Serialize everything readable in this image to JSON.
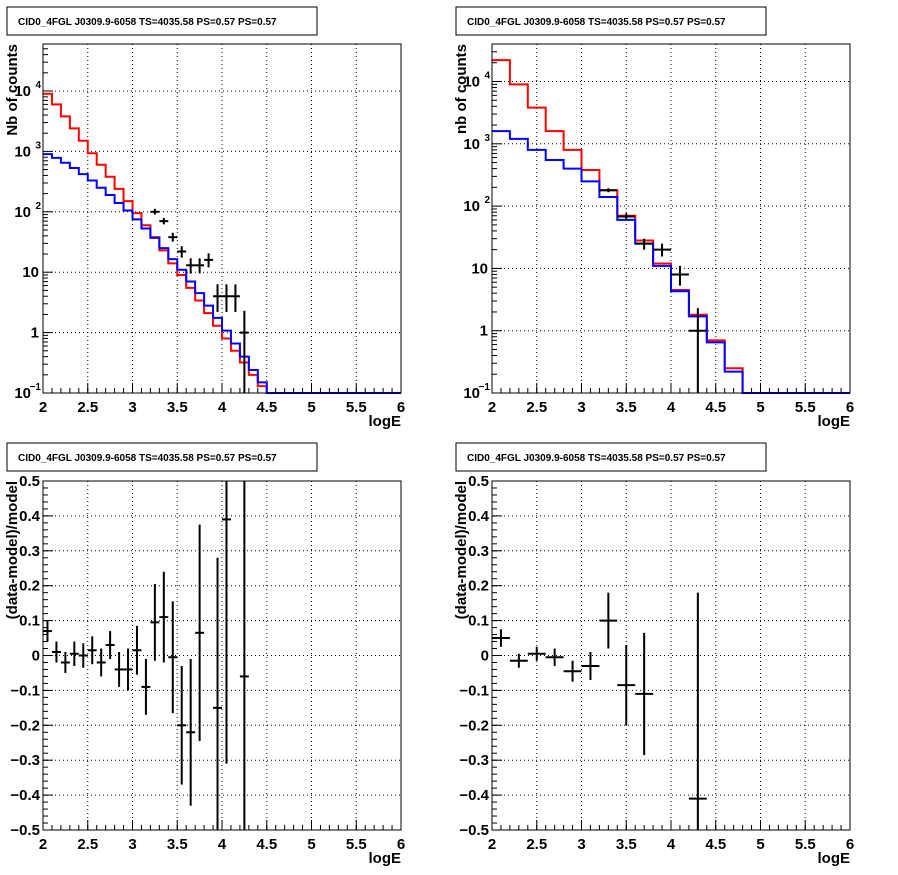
{
  "colors": {
    "total_model": "#ff0000",
    "source_model": "#0000ff",
    "data": "#000000",
    "grid": "#000000"
  },
  "chart_data": [
    {
      "type": "line",
      "title": "CID0_4FGL J0309.9-6058 TS=4035.58 PS=0.57 PS=0.57",
      "xlabel": "logE",
      "ylabel": "Nb of counts",
      "xlim": [
        2,
        6
      ],
      "ylim": [
        0.1,
        60000
      ],
      "yscale": "log",
      "grid": true,
      "x_ticks": [
        "2",
        "2.5",
        "3",
        "3.5",
        "4",
        "4.5",
        "5",
        "5.5",
        "6"
      ],
      "y_ticks": [
        {
          "value": 0.1,
          "label": "10",
          "exp": "−1"
        },
        {
          "value": 1,
          "label": "1",
          "exp": ""
        },
        {
          "value": 10,
          "label": "10",
          "exp": ""
        },
        {
          "value": 100,
          "label": "10",
          "exp": "2"
        },
        {
          "value": 1000,
          "label": "10",
          "exp": "3"
        },
        {
          "value": 10000,
          "label": "10",
          "exp": "4"
        }
      ],
      "bin_edges": [
        2.0,
        2.1,
        2.2,
        2.3,
        2.4,
        2.5,
        2.6,
        2.7,
        2.8,
        2.9,
        3.0,
        3.1,
        3.2,
        3.3,
        3.4,
        3.5,
        3.6,
        3.7,
        3.8,
        3.9,
        4.0,
        4.1,
        4.2,
        4.3,
        4.4,
        4.5,
        4.6,
        4.7,
        4.8,
        4.9,
        5.0,
        5.1,
        5.2,
        5.3,
        5.4,
        5.5,
        5.6,
        5.7,
        5.8,
        5.9,
        6.0
      ],
      "series": [
        {
          "key": "total",
          "style": "step",
          "values": [
            9000,
            6000,
            3800,
            2400,
            1500,
            930,
            600,
            380,
            240,
            150,
            95,
            60,
            38,
            23,
            14,
            9,
            5.5,
            3.4,
            2.1,
            1.3,
            0.8,
            0.5,
            0.32,
            0.2,
            0.13,
            0.1,
            0.1,
            0.1,
            0.1,
            0.1,
            0.1,
            0.1,
            0.1,
            0.1,
            0.1,
            0.1,
            0.1,
            0.1,
            0.1,
            0.1
          ]
        },
        {
          "key": "source",
          "style": "step",
          "values": [
            900,
            780,
            650,
            530,
            420,
            330,
            250,
            190,
            140,
            105,
            75,
            53,
            37,
            25,
            16.5,
            11,
            7,
            4.5,
            2.8,
            1.75,
            1.08,
            0.66,
            0.4,
            0.24,
            0.15,
            0.1,
            0.1,
            0.1,
            0.1,
            0.1,
            0.1,
            0.1,
            0.1,
            0.1,
            0.1,
            0.1,
            0.1,
            0.1,
            0.1,
            0.1
          ]
        },
        {
          "key": "data",
          "style": "errorbar",
          "points": [
            {
              "x": 3.25,
              "y": 100,
              "lo": 90,
              "hi": 112
            },
            {
              "x": 3.35,
              "y": 70,
              "lo": 62,
              "hi": 79
            },
            {
              "x": 3.45,
              "y": 38,
              "lo": 32,
              "hi": 45
            },
            {
              "x": 3.55,
              "y": 22,
              "lo": 17.5,
              "hi": 27
            },
            {
              "x": 3.65,
              "y": 13,
              "lo": 9.5,
              "hi": 17
            },
            {
              "x": 3.75,
              "y": 13,
              "lo": 9.5,
              "hi": 17
            },
            {
              "x": 3.85,
              "y": 16,
              "lo": 12,
              "hi": 20.5
            },
            {
              "x": 3.95,
              "y": 4,
              "lo": 2.2,
              "hi": 6.3
            },
            {
              "x": 4.05,
              "y": 4,
              "lo": 2.2,
              "hi": 6.3
            },
            {
              "x": 4.15,
              "y": 4,
              "lo": 2.2,
              "hi": 6.3
            },
            {
              "x": 4.25,
              "y": 1,
              "lo": 0.1,
              "hi": 2.3
            }
          ]
        }
      ]
    },
    {
      "type": "line",
      "title": "CID0_4FGL J0309.9-6058 TS=4035.58 PS=0.57 PS=0.57",
      "xlabel": "logE",
      "ylabel": "nb of counts",
      "xlim": [
        2,
        6
      ],
      "ylim": [
        0.1,
        40000
      ],
      "yscale": "log",
      "grid": true,
      "x_ticks": [
        "2",
        "2.5",
        "3",
        "3.5",
        "4",
        "4.5",
        "5",
        "5.5",
        "6"
      ],
      "y_ticks": [
        {
          "value": 0.1,
          "label": "10",
          "exp": "−1"
        },
        {
          "value": 1,
          "label": "1",
          "exp": ""
        },
        {
          "value": 10,
          "label": "10",
          "exp": ""
        },
        {
          "value": 100,
          "label": "10",
          "exp": "2"
        },
        {
          "value": 1000,
          "label": "10",
          "exp": "3"
        },
        {
          "value": 10000,
          "label": "10",
          "exp": "4"
        }
      ],
      "bin_edges": [
        2.0,
        2.2,
        2.4,
        2.6,
        2.8,
        3.0,
        3.2,
        3.4,
        3.6,
        3.8,
        4.0,
        4.2,
        4.4,
        4.6,
        4.8,
        5.0,
        5.2,
        5.4,
        5.6,
        5.8,
        6.0
      ],
      "series": [
        {
          "key": "total",
          "style": "step",
          "values": [
            22000,
            9000,
            3800,
            1600,
            800,
            380,
            180,
            70,
            28,
            12,
            4.5,
            1.8,
            0.7,
            0.25,
            0.1,
            0.1,
            0.1,
            0.1,
            0.1,
            0.1
          ]
        },
        {
          "key": "source",
          "style": "step",
          "values": [
            1600,
            1200,
            800,
            550,
            400,
            250,
            140,
            60,
            25,
            11,
            4.3,
            1.7,
            0.65,
            0.22,
            0.1,
            0.1,
            0.1,
            0.1,
            0.1,
            0.1
          ]
        },
        {
          "key": "data",
          "style": "errorbar",
          "points": [
            {
              "x": 3.3,
              "y": 180,
              "lo": 167,
              "hi": 194
            },
            {
              "x": 3.5,
              "y": 68,
              "lo": 60,
              "hi": 77
            },
            {
              "x": 3.7,
              "y": 25,
              "lo": 20,
              "hi": 30
            },
            {
              "x": 3.9,
              "y": 20,
              "lo": 15.5,
              "hi": 25
            },
            {
              "x": 4.1,
              "y": 8,
              "lo": 5.3,
              "hi": 11
            },
            {
              "x": 4.3,
              "y": 1,
              "lo": 0.1,
              "hi": 2.3
            }
          ]
        }
      ]
    },
    {
      "type": "scatter",
      "title": "CID0_4FGL J0309.9-6058 TS=4035.58 PS=0.57 PS=0.57",
      "xlabel": "logE",
      "ylabel": "(data-model)/model",
      "xlim": [
        2,
        6
      ],
      "ylim": [
        -0.5,
        0.5
      ],
      "yscale": "linear",
      "grid": true,
      "x_ticks": [
        "2",
        "2.5",
        "3",
        "3.5",
        "4",
        "4.5",
        "5",
        "5.5",
        "6"
      ],
      "y_ticks": [
        "−0.5",
        "−0.4",
        "−0.3",
        "−0.2",
        "−0.1",
        "0",
        "0.1",
        "0.2",
        "0.3",
        "0.4",
        "0.5"
      ],
      "points": [
        {
          "x": 2.05,
          "y": 0.07,
          "err": 0.03
        },
        {
          "x": 2.15,
          "y": 0.01,
          "err": 0.03
        },
        {
          "x": 2.25,
          "y": -0.02,
          "err": 0.03
        },
        {
          "x": 2.35,
          "y": 0.005,
          "err": 0.035
        },
        {
          "x": 2.45,
          "y": 0.0,
          "err": 0.035
        },
        {
          "x": 2.55,
          "y": 0.015,
          "err": 0.04
        },
        {
          "x": 2.65,
          "y": -0.02,
          "err": 0.04
        },
        {
          "x": 2.75,
          "y": 0.03,
          "err": 0.04
        },
        {
          "x": 2.85,
          "y": -0.04,
          "err": 0.05
        },
        {
          "x": 2.95,
          "y": -0.04,
          "err": 0.06
        },
        {
          "x": 3.05,
          "y": 0.015,
          "err": 0.07
        },
        {
          "x": 3.15,
          "y": -0.09,
          "err": 0.08
        },
        {
          "x": 3.25,
          "y": 0.095,
          "err": 0.11
        },
        {
          "x": 3.35,
          "y": 0.11,
          "err": 0.13
        },
        {
          "x": 3.45,
          "y": -0.005,
          "err": 0.16
        },
        {
          "x": 3.55,
          "y": -0.2,
          "err": 0.17
        },
        {
          "x": 3.65,
          "y": -0.22,
          "err": 0.21
        },
        {
          "x": 3.75,
          "y": 0.065,
          "err": 0.31
        },
        {
          "x": 3.95,
          "y": -0.15,
          "err": 0.43
        },
        {
          "x": 4.05,
          "y": 0.39,
          "err": 0.7
        },
        {
          "x": 4.25,
          "y": -0.06,
          "err": 0.8
        }
      ]
    },
    {
      "type": "scatter",
      "title": "CID0_4FGL J0309.9-6058 TS=4035.58 PS=0.57 PS=0.57",
      "xlabel": "logE",
      "ylabel": "(data-model)/model",
      "xlim": [
        2,
        6
      ],
      "ylim": [
        -0.5,
        0.5
      ],
      "yscale": "linear",
      "grid": true,
      "x_ticks": [
        "2",
        "2.5",
        "3",
        "3.5",
        "4",
        "4.5",
        "5",
        "5.5",
        "6"
      ],
      "y_ticks": [
        "−0.5",
        "−0.4",
        "−0.3",
        "−0.2",
        "−0.1",
        "0",
        "0.1",
        "0.2",
        "0.3",
        "0.4",
        "0.5"
      ],
      "points": [
        {
          "x": 2.1,
          "y": 0.05,
          "err": 0.025
        },
        {
          "x": 2.3,
          "y": -0.015,
          "err": 0.02
        },
        {
          "x": 2.5,
          "y": 0.005,
          "err": 0.02
        },
        {
          "x": 2.7,
          "y": -0.005,
          "err": 0.025
        },
        {
          "x": 2.9,
          "y": -0.045,
          "err": 0.03
        },
        {
          "x": 3.1,
          "y": -0.03,
          "err": 0.04
        },
        {
          "x": 3.3,
          "y": 0.1,
          "err": 0.08
        },
        {
          "x": 3.5,
          "y": -0.085,
          "err": 0.115
        },
        {
          "x": 3.7,
          "y": -0.11,
          "err": 0.175
        },
        {
          "x": 4.3,
          "y": -0.41,
          "err": 0.59
        }
      ]
    }
  ]
}
